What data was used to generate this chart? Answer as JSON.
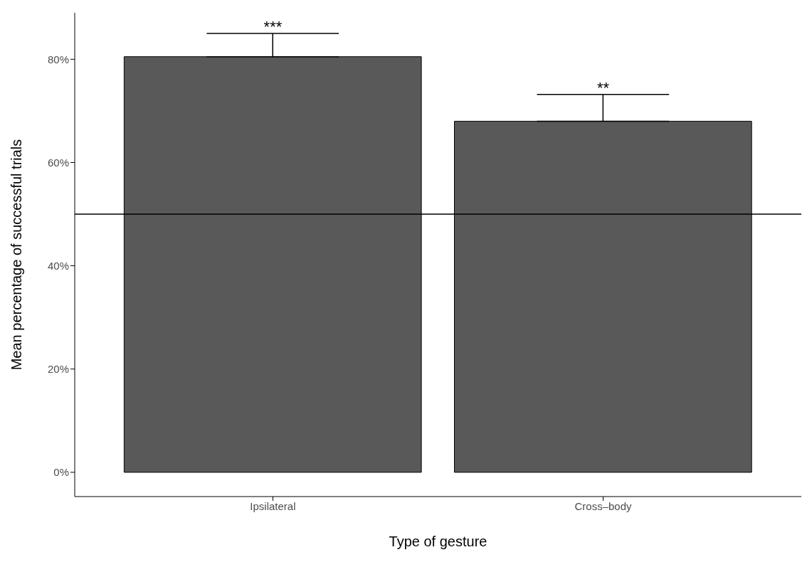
{
  "chart_data": {
    "type": "bar",
    "xlabel": "Type of gesture",
    "ylabel": "Mean percentage of successful trials",
    "categories": [
      "Ipsilateral",
      "Cross–body"
    ],
    "values": [
      80.5,
      68.0
    ],
    "color": "#595959",
    "errors": [
      [
        80.5,
        85.0
      ],
      [
        68.0,
        73.2
      ]
    ],
    "ylim": [
      -4.7,
      89
    ],
    "yticks": [
      {
        "value": 0,
        "label": "0%"
      },
      {
        "value": 20,
        "label": "20%"
      },
      {
        "value": 40,
        "label": "40%"
      },
      {
        "value": 60,
        "label": "60%"
      },
      {
        "value": 80,
        "label": "80%"
      }
    ],
    "grid": false,
    "legend": false,
    "ref_lines": [
      {
        "axis": "y",
        "value": 50,
        "color": "#000000"
      }
    ],
    "annotations": [
      {
        "text": "***",
        "x": "Ipsilateral",
        "y": 85.0
      },
      {
        "text": "**",
        "x": "Cross–body",
        "y": 73.2
      }
    ]
  }
}
